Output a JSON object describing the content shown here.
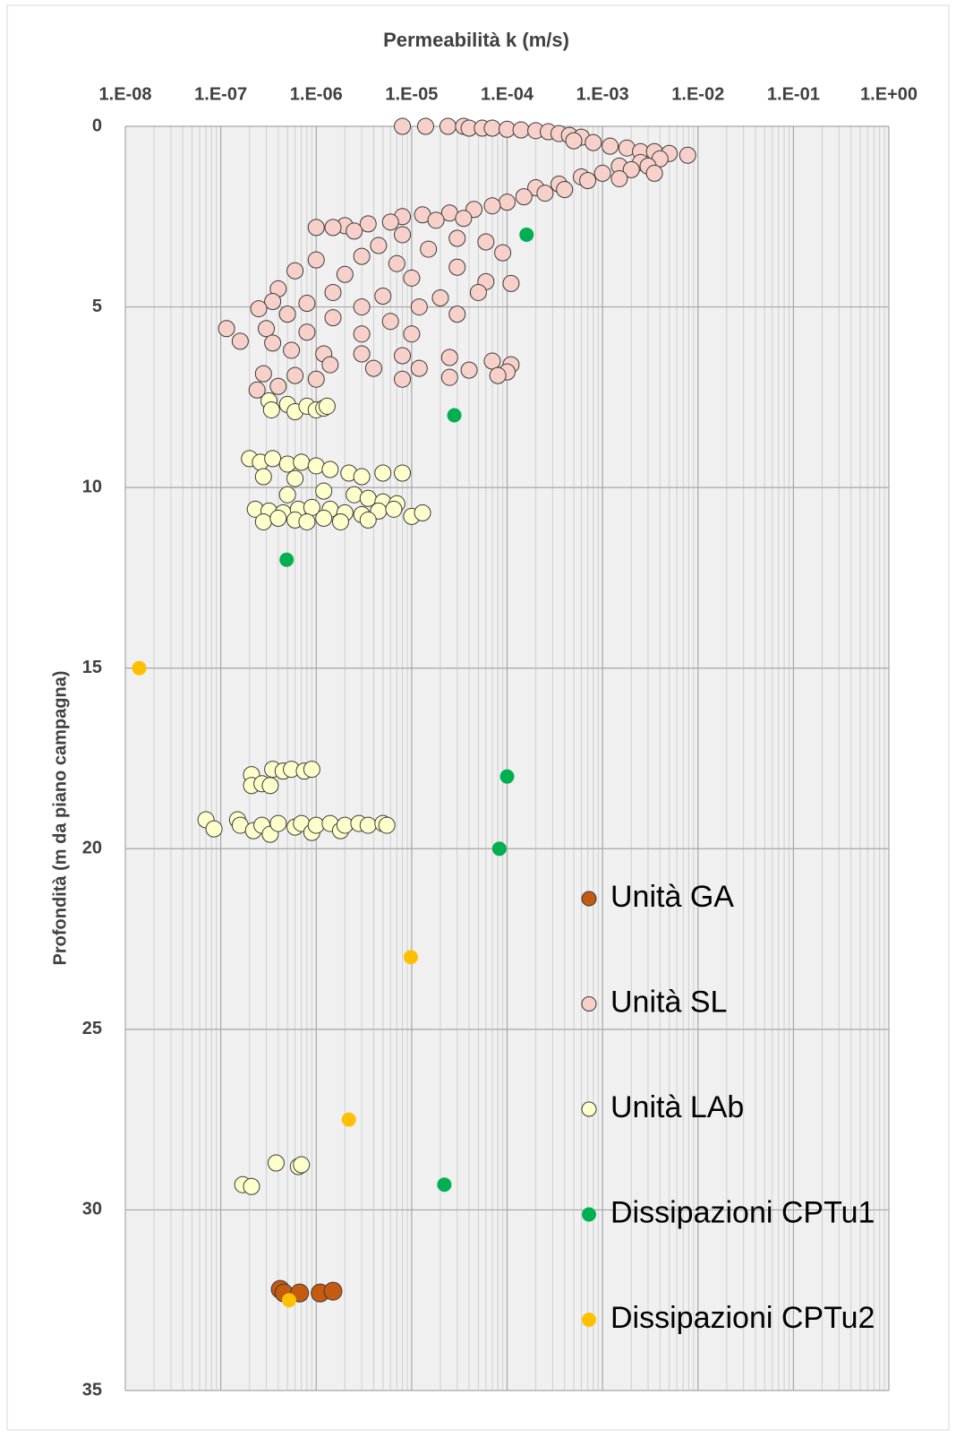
{
  "chart_data": {
    "type": "scatter",
    "title": "Permeabilità k (m/s)",
    "y_label": "Profondità (m da piano campagna)",
    "x_scale": "log",
    "y_inverted": true,
    "grid": true,
    "minor_grid": true,
    "legend_position": "lower right",
    "xlim": [
      1e-08,
      1
    ],
    "xticks": [
      {
        "value": 1e-08,
        "label": "1.E-08"
      },
      {
        "value": 1e-07,
        "label": "1.E-07"
      },
      {
        "value": 1e-06,
        "label": "1.E-06"
      },
      {
        "value": 1e-05,
        "label": "1.E-05"
      },
      {
        "value": 0.0001,
        "label": "1.E-04"
      },
      {
        "value": 0.001,
        "label": "1.E-03"
      },
      {
        "value": 0.01,
        "label": "1.E-02"
      },
      {
        "value": 0.1,
        "label": "1.E-01"
      },
      {
        "value": 1,
        "label": "1.E+00"
      }
    ],
    "ylim": [
      0,
      35
    ],
    "yticks": [
      0,
      5,
      10,
      15,
      20,
      25,
      30,
      35
    ],
    "series": [
      {
        "name": "Unità GA",
        "color": "#c55a11",
        "x": [
          4.2e-07,
          4.6e-07,
          6.7e-07,
          1.1e-06,
          1.5e-06
        ],
        "values": [
          32.2,
          32.3,
          32.3,
          32.3,
          32.25
        ]
      },
      {
        "name": "Unità SL",
        "color": "#f8d0ca",
        "x": [
          8e-06,
          1.4e-05,
          2.4e-05,
          3.5e-05,
          4e-05,
          5.5e-05,
          7e-05,
          0.0001,
          0.00014,
          0.0002,
          0.00027,
          0.00035,
          0.00045,
          0.0006,
          0.0005,
          0.0008,
          0.0012,
          0.0018,
          0.0025,
          0.0035,
          0.005,
          0.0078,
          0.004,
          0.0025,
          0.0015,
          0.003,
          0.002,
          0.001,
          0.0006,
          0.0035,
          0.0015,
          0.0007,
          0.00035,
          0.0002,
          0.0004,
          0.00025,
          0.00015,
          0.0001,
          7e-05,
          4.5e-05,
          2.5e-05,
          1.3e-05,
          8e-06,
          3.5e-05,
          1.8e-05,
          6e-06,
          3.5e-06,
          2e-06,
          1.5e-06,
          1e-06,
          2.5e-06,
          8e-06,
          3e-05,
          6e-05,
          4.5e-06,
          1.5e-05,
          9e-05,
          3e-06,
          1e-06,
          7e-06,
          3e-05,
          6e-07,
          2e-06,
          1e-05,
          6e-05,
          0.00011,
          4e-07,
          1.5e-06,
          5e-06,
          2e-05,
          5e-05,
          3.5e-07,
          8e-07,
          3e-06,
          1.2e-05,
          3e-05,
          2.5e-07,
          5e-07,
          1.5e-06,
          6e-06,
          1.15e-07,
          3e-07,
          8e-07,
          3e-06,
          1e-05,
          1.6e-07,
          3.5e-07,
          5.5e-07,
          1.2e-06,
          3e-06,
          8e-06,
          2.5e-05,
          7e-05,
          0.00011,
          1.4e-06,
          4e-06,
          1.2e-05,
          4e-05,
          0.0001,
          2.8e-07,
          6e-07,
          1e-06,
          8e-06,
          2.5e-05,
          8e-05,
          2.4e-07,
          4e-07
        ],
        "values": [
          0,
          0,
          0,
          0,
          0.05,
          0.05,
          0.05,
          0.08,
          0.1,
          0.12,
          0.15,
          0.2,
          0.25,
          0.3,
          0.4,
          0.45,
          0.55,
          0.6,
          0.7,
          0.7,
          0.75,
          0.8,
          0.9,
          1.0,
          1.1,
          1.1,
          1.2,
          1.3,
          1.4,
          1.3,
          1.45,
          1.5,
          1.6,
          1.7,
          1.75,
          1.85,
          1.95,
          2.1,
          2.2,
          2.3,
          2.4,
          2.45,
          2.5,
          2.55,
          2.6,
          2.65,
          2.7,
          2.75,
          2.8,
          2.8,
          2.9,
          3.0,
          3.1,
          3.2,
          3.3,
          3.4,
          3.5,
          3.6,
          3.7,
          3.8,
          3.9,
          4.0,
          4.1,
          4.2,
          4.3,
          4.35,
          4.5,
          4.6,
          4.7,
          4.75,
          4.6,
          4.85,
          4.9,
          5.0,
          5.0,
          5.2,
          5.05,
          5.2,
          5.3,
          5.4,
          5.6,
          5.6,
          5.7,
          5.75,
          5.75,
          5.95,
          6.0,
          6.2,
          6.3,
          6.3,
          6.35,
          6.4,
          6.5,
          6.6,
          6.6,
          6.7,
          6.7,
          6.75,
          6.8,
          6.85,
          6.9,
          7.0,
          7.0,
          6.95,
          6.9,
          7.3,
          7.2
        ]
      },
      {
        "name": "Unità LAb",
        "color": "#ffffcc",
        "x": [
          3.2e-07,
          3.4e-07,
          5e-07,
          6e-07,
          8e-07,
          1e-06,
          1.2e-06,
          1.3e-06,
          2e-07,
          2.6e-07,
          3.5e-07,
          5e-07,
          7e-07,
          1e-06,
          1.4e-06,
          2.2e-06,
          3e-06,
          5e-06,
          8e-06,
          6e-07,
          2.8e-07,
          5e-07,
          1.2e-06,
          2.5e-06,
          3.5e-06,
          5e-06,
          7e-06,
          2.3e-07,
          3.2e-07,
          4.5e-07,
          6.5e-07,
          9e-07,
          1.4e-06,
          2e-06,
          3e-06,
          4.5e-06,
          6.5e-06,
          1e-05,
          1.3e-05,
          2.8e-07,
          4e-07,
          6e-07,
          8e-07,
          1.2e-06,
          1.8e-06,
          3.5e-06,
          2.1e-07,
          2.1e-07,
          2.7e-07,
          3.3e-07,
          3.5e-07,
          4.5e-07,
          5.5e-07,
          7.5e-07,
          9e-07,
          7e-08,
          8.5e-08,
          1.5e-07,
          1.6e-07,
          2.2e-07,
          2.7e-07,
          3.3e-07,
          4e-07,
          6e-07,
          7e-07,
          9e-07,
          1e-06,
          1.4e-06,
          1.8e-06,
          2e-06,
          2.8e-06,
          3.5e-06,
          5e-06,
          5.5e-06,
          3.8e-07,
          6.5e-07,
          7e-07,
          1.7e-07,
          2.1e-07
        ],
        "values": [
          7.6,
          7.85,
          7.7,
          7.9,
          7.75,
          7.85,
          7.8,
          7.75,
          9.2,
          9.3,
          9.2,
          9.35,
          9.3,
          9.4,
          9.5,
          9.6,
          9.7,
          9.6,
          9.6,
          9.75,
          9.7,
          10.2,
          10.1,
          10.2,
          10.3,
          10.4,
          10.45,
          10.6,
          10.65,
          10.7,
          10.6,
          10.55,
          10.6,
          10.7,
          10.75,
          10.65,
          10.6,
          10.8,
          10.7,
          10.95,
          10.85,
          10.9,
          10.95,
          10.85,
          10.95,
          10.9,
          17.95,
          18.25,
          18.2,
          18.25,
          17.8,
          17.85,
          17.8,
          17.85,
          17.8,
          19.2,
          19.45,
          19.2,
          19.35,
          19.5,
          19.35,
          19.6,
          19.3,
          19.4,
          19.3,
          19.55,
          19.35,
          19.3,
          19.5,
          19.35,
          19.3,
          19.35,
          19.3,
          19.35,
          28.7,
          28.8,
          28.75,
          29.3,
          29.35
        ]
      },
      {
        "name": "Dissipazioni CPTu1",
        "color": "#00b050",
        "x": [
          0.00016,
          2.8e-05,
          4.9e-07,
          0.0001,
          8.3e-05,
          2.2e-05
        ],
        "values": [
          3.0,
          8.0,
          12.0,
          18.0,
          20.0,
          29.3
        ]
      },
      {
        "name": "Dissipazioni CPTu2",
        "color": "#ffc000",
        "x": [
          1.4e-08,
          9.8e-06,
          2.2e-06,
          5.2e-07
        ],
        "values": [
          15.0,
          23.0,
          27.5,
          32.5
        ]
      }
    ]
  }
}
